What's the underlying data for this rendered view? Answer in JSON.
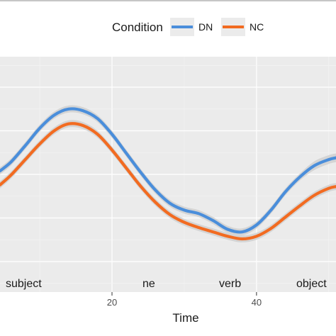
{
  "chart_data": {
    "type": "line",
    "title": "",
    "xlabel": "Time",
    "ylabel": "",
    "xlim": [
      4.5,
      51
    ],
    "ylim": [
      -1.35,
      1.35
    ],
    "x_ticks": [
      20,
      40
    ],
    "x_tick_labels": [
      "20",
      "40"
    ],
    "grid": true,
    "legend": {
      "title": "Condition",
      "placement": "top",
      "entries": [
        {
          "label": "DN",
          "color": "#4a8edb"
        },
        {
          "label": "NC",
          "color": "#f26b21"
        }
      ]
    },
    "band_color": "#d3d3d3",
    "annotations": [
      {
        "text": "subject",
        "x": 8.5
      },
      {
        "text": "ne",
        "x": 22.5
      },
      {
        "text": "verb",
        "x": 35.5
      },
      {
        "text": "object",
        "x": 47.5
      }
    ],
    "x": [
      4.5,
      6,
      8,
      10,
      12,
      14,
      16,
      18,
      20,
      22,
      24,
      26,
      28,
      30,
      32,
      34,
      36,
      38,
      40,
      42,
      44,
      46,
      48,
      50,
      51
    ],
    "series": [
      {
        "name": "DN",
        "color": "#4a8edb",
        "values": [
          0.04,
          0.14,
          0.33,
          0.53,
          0.68,
          0.75,
          0.73,
          0.64,
          0.46,
          0.24,
          0.02,
          -0.18,
          -0.33,
          -0.41,
          -0.45,
          -0.53,
          -0.63,
          -0.66,
          -0.58,
          -0.41,
          -0.2,
          -0.03,
          0.1,
          0.17,
          0.19
        ],
        "band": [
          0.04,
          0.04,
          0.04,
          0.04,
          0.04,
          0.04,
          0.04,
          0.04,
          0.04,
          0.04,
          0.04,
          0.04,
          0.04,
          0.04,
          0.04,
          0.04,
          0.04,
          0.04,
          0.04,
          0.04,
          0.04,
          0.04,
          0.05,
          0.05,
          0.05
        ]
      },
      {
        "name": "NC",
        "color": "#f26b21",
        "values": [
          -0.12,
          -0.01,
          0.17,
          0.35,
          0.5,
          0.58,
          0.56,
          0.46,
          0.28,
          0.07,
          -0.14,
          -0.32,
          -0.46,
          -0.55,
          -0.61,
          -0.66,
          -0.71,
          -0.74,
          -0.71,
          -0.62,
          -0.49,
          -0.36,
          -0.24,
          -0.16,
          -0.14
        ]
      }
    ]
  }
}
